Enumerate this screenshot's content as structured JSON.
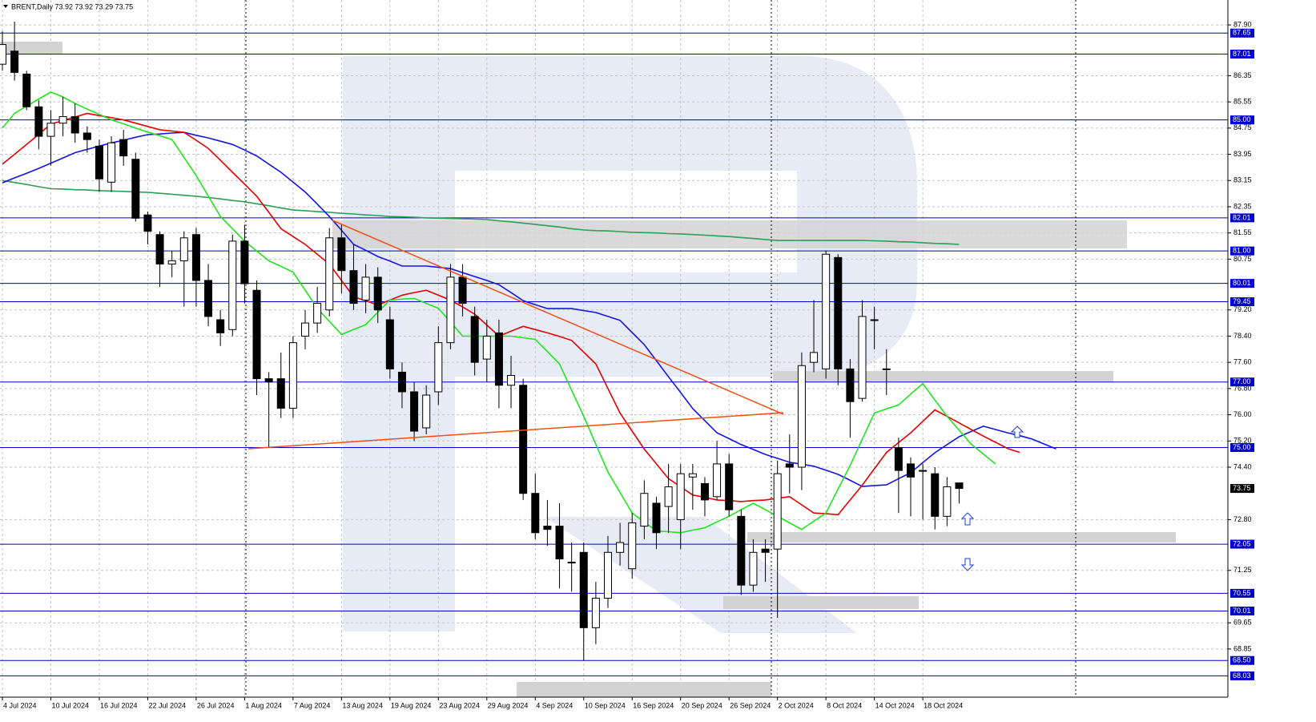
{
  "chart_data": {
    "type": "candlestick",
    "title": "BRENT,Daily 73.92 73.92 73.29 73.75",
    "categories": [
      "4 Jul 2024",
      null,
      null,
      null,
      "10 Jul 2024",
      null,
      null,
      null,
      "16 Jul 2024",
      null,
      null,
      null,
      "22 Jul 2024",
      null,
      null,
      null,
      "26 Jul 2024",
      null,
      null,
      null,
      "1 Aug 2024",
      null,
      null,
      null,
      "7 Aug 2024",
      null,
      null,
      null,
      "13 Aug 2024",
      null,
      null,
      null,
      "19 Aug 2024",
      null,
      null,
      null,
      "23 Aug 2024",
      null,
      null,
      null,
      "29 Aug 2024",
      null,
      null,
      null,
      "4 Sep 2024",
      null,
      null,
      null,
      "10 Sep 2024",
      null,
      null,
      null,
      "16 Sep 2024",
      null,
      null,
      null,
      "20 Sep 2024",
      null,
      null,
      null,
      "26 Sep 2024",
      null,
      null,
      null,
      "2 Oct 2024",
      null,
      null,
      null,
      "8 Oct 2024",
      null,
      null,
      null,
      "14 Oct 2024",
      null,
      null,
      null,
      "18 Oct 2024",
      null,
      null,
      null,
      null,
      null,
      null,
      null,
      null,
      null,
      null,
      null
    ],
    "open": [
      86.7,
      87.1,
      86.4,
      85.4,
      84.5,
      84.9,
      85.1,
      84.6,
      84.2,
      83.1,
      84.4,
      83.8,
      82.1,
      81.5,
      80.6,
      80.7,
      81.5,
      80.1,
      78.9,
      78.6,
      81.3,
      79.8,
      77.1,
      77.1,
      76.2,
      78.4,
      78.8,
      79.2,
      81.4,
      80.4,
      79.5,
      80.2,
      78.9,
      77.3,
      76.7,
      75.6,
      76.7,
      78.2,
      80.2,
      79.0,
      77.7,
      78.5,
      76.9,
      76.9,
      73.6,
      72.6,
      72.6,
      71.5,
      71.8,
      69.5,
      70.4,
      71.8,
      71.3,
      72.6,
      73.3,
      73.2,
      72.8,
      74.1,
      73.9,
      73.5,
      74.5,
      72.9,
      70.8,
      71.9,
      71.9,
      74.5,
      74.4,
      77.6,
      77.4,
      80.8,
      77.4,
      76.5,
      78.9,
      77.4,
      75.0,
      74.5,
      74.3,
      74.2,
      72.9,
      73.92,
      null,
      null,
      null,
      null,
      null,
      null,
      null,
      null
    ],
    "high": [
      87.7,
      88.0,
      86.5,
      85.6,
      85.3,
      85.7,
      85.5,
      84.8,
      84.4,
      84.5,
      84.7,
      84.0,
      82.2,
      81.6,
      81.0,
      81.6,
      81.7,
      80.6,
      79.2,
      81.5,
      81.8,
      80.1,
      77.3,
      77.9,
      78.4,
      79.2,
      79.9,
      81.7,
      81.8,
      81.2,
      80.6,
      80.5,
      79.3,
      77.6,
      77.0,
      76.9,
      78.7,
      80.6,
      80.6,
      79.3,
      78.9,
      78.9,
      77.8,
      77.1,
      74.2,
      73.4,
      73.3,
      72.1,
      72.1,
      70.9,
      72.3,
      72.7,
      73.0,
      74.0,
      73.5,
      74.5,
      74.5,
      74.5,
      74.1,
      75.2,
      74.8,
      73.1,
      72.2,
      72.2,
      74.6,
      75.4,
      77.9,
      79.5,
      81.0,
      80.9,
      77.7,
      79.5,
      79.3,
      78.0,
      75.3,
      74.7,
      74.5,
      74.4,
      74.1,
      73.92,
      null,
      null,
      null,
      null,
      null,
      null,
      null,
      null
    ],
    "low": [
      86.5,
      86.2,
      85.3,
      84.1,
      83.6,
      84.5,
      84.3,
      84.0,
      82.8,
      82.8,
      83.6,
      81.9,
      81.2,
      79.9,
      80.2,
      79.3,
      79.3,
      78.7,
      78.1,
      78.4,
      79.4,
      76.6,
      75.0,
      75.9,
      75.9,
      78.0,
      78.5,
      79.0,
      79.7,
      79.2,
      79.1,
      78.8,
      77.1,
      76.2,
      75.2,
      75.4,
      76.3,
      78.0,
      79.0,
      77.2,
      77.0,
      76.2,
      76.2,
      73.4,
      72.2,
      72.0,
      70.7,
      70.6,
      68.5,
      69.0,
      70.1,
      71.4,
      71.0,
      72.2,
      71.9,
      72.4,
      71.9,
      73.1,
      72.9,
      73.4,
      72.9,
      70.5,
      70.6,
      70.9,
      69.8,
      73.6,
      73.7,
      77.3,
      77.1,
      76.9,
      75.3,
      76.4,
      78.0,
      76.6,
      73.0,
      72.9,
      72.8,
      72.5,
      72.6,
      73.29,
      null,
      null,
      null,
      null,
      null,
      null,
      null,
      null
    ],
    "close": [
      87.3,
      86.45,
      85.4,
      84.5,
      84.9,
      85.1,
      84.6,
      84.4,
      83.2,
      84.3,
      83.9,
      82.0,
      81.6,
      80.6,
      80.7,
      81.4,
      80.1,
      79.0,
      78.5,
      81.3,
      80.0,
      77.1,
      77.0,
      76.2,
      78.2,
      78.8,
      79.4,
      81.4,
      80.4,
      79.4,
      80.2,
      79.2,
      77.4,
      76.7,
      75.5,
      76.6,
      78.2,
      80.2,
      79.4,
      77.6,
      78.4,
      76.9,
      77.2,
      73.6,
      72.4,
      72.5,
      71.6,
      71.5,
      69.5,
      70.4,
      71.8,
      72.1,
      72.7,
      73.6,
      72.4,
      73.8,
      74.2,
      74.2,
      73.4,
      74.5,
      73.1,
      70.8,
      71.8,
      71.8,
      74.2,
      74.4,
      77.5,
      77.9,
      80.9,
      77.4,
      76.4,
      79.0,
      78.9,
      77.4,
      74.3,
      74.1,
      74.3,
      72.9,
      73.8,
      73.75,
      null,
      null,
      null,
      null,
      null,
      null,
      null,
      null
    ],
    "series": [
      {
        "color": "#2e9e58",
        "values": [
          83.15,
          83.09,
          83.03,
          82.96,
          82.9,
          82.89,
          82.87,
          82.86,
          82.84,
          82.83,
          82.82,
          82.8,
          82.79,
          82.76,
          82.73,
          82.7,
          82.67,
          82.63,
          82.59,
          82.54,
          82.5,
          82.44,
          82.38,
          82.31,
          82.25,
          82.23,
          82.2,
          82.18,
          82.15,
          82.13,
          82.1,
          82.08,
          82.05,
          82.04,
          82.03,
          82.01,
          82.0,
          81.99,
          81.98,
          81.97,
          81.96,
          81.92,
          81.89,
          81.85,
          81.81,
          81.77,
          81.73,
          81.68,
          81.64,
          81.62,
          81.61,
          81.59,
          81.57,
          81.56,
          81.55,
          81.53,
          81.52,
          81.5,
          81.48,
          81.46,
          81.44,
          81.41,
          81.38,
          81.35,
          81.32,
          81.32,
          81.32,
          81.32,
          81.32,
          81.32,
          81.32,
          81.32,
          81.31,
          81.3,
          81.28,
          81.27,
          81.25,
          81.23,
          81.22,
          81.2,
          null,
          null,
          null,
          null,
          null,
          null,
          null,
          null
        ]
      },
      {
        "color": "#1414e6",
        "values": [
          83.08,
          83.23,
          83.37,
          83.52,
          83.68,
          83.84,
          84.0,
          84.1,
          84.2,
          84.3,
          84.38,
          84.47,
          84.55,
          84.57,
          84.6,
          84.62,
          84.53,
          84.45,
          84.35,
          84.25,
          84.08,
          83.9,
          83.65,
          83.4,
          83.1,
          82.8,
          82.43,
          82.05,
          81.63,
          81.2,
          81.02,
          80.83,
          80.69,
          80.54,
          80.54,
          80.54,
          80.5,
          80.46,
          80.34,
          80.22,
          80.1,
          79.97,
          79.73,
          79.48,
          79.36,
          79.24,
          79.24,
          79.24,
          79.18,
          79.12,
          79.0,
          78.88,
          78.51,
          78.14,
          77.65,
          77.16,
          76.68,
          76.19,
          75.82,
          75.45,
          75.27,
          75.09,
          74.94,
          74.79,
          74.67,
          74.55,
          74.49,
          74.43,
          74.31,
          74.18,
          74.0,
          73.81,
          73.84,
          73.86,
          74.05,
          74.23,
          74.54,
          74.84,
          75.09,
          75.33,
          75.49,
          75.65,
          75.55,
          75.45,
          75.36,
          75.26,
          75.11,
          74.96
        ]
      },
      {
        "color": "#e60000",
        "values": [
          83.65,
          83.95,
          84.25,
          84.56,
          84.87,
          84.98,
          85.09,
          85.2,
          85.13,
          85.07,
          85.0,
          84.9,
          84.8,
          84.7,
          84.66,
          84.62,
          84.38,
          84.13,
          83.77,
          83.4,
          83.04,
          82.67,
          82.18,
          81.68,
          81.44,
          81.2,
          80.9,
          80.6,
          80.1,
          79.6,
          79.48,
          79.35,
          79.5,
          79.65,
          79.73,
          79.8,
          79.65,
          79.5,
          79.29,
          79.07,
          78.74,
          78.4,
          78.55,
          78.7,
          78.6,
          78.5,
          78.39,
          78.27,
          77.91,
          77.55,
          76.8,
          76.05,
          75.5,
          74.95,
          74.5,
          74.05,
          73.8,
          73.55,
          73.48,
          73.4,
          73.38,
          73.35,
          73.38,
          73.4,
          73.45,
          73.5,
          73.25,
          73.0,
          72.98,
          72.95,
          73.4,
          73.85,
          74.35,
          74.85,
          75.15,
          75.45,
          75.8,
          76.15,
          75.95,
          75.75,
          75.55,
          75.35,
          75.16,
          74.97,
          74.85,
          null,
          null,
          null
        ]
      },
      {
        "color": "#1ee61e",
        "values": [
          84.75,
          85.2,
          85.42,
          85.64,
          85.85,
          85.7,
          85.5,
          85.33,
          85.17,
          85.0,
          84.88,
          84.75,
          84.63,
          84.52,
          84.4,
          83.85,
          83.3,
          82.68,
          82.05,
          81.68,
          81.3,
          81.0,
          80.7,
          80.53,
          80.35,
          79.8,
          79.25,
          78.85,
          78.45,
          78.6,
          78.75,
          79.13,
          79.5,
          79.53,
          79.55,
          79.4,
          79.25,
          78.83,
          78.4,
          78.4,
          78.4,
          78.4,
          78.4,
          78.35,
          78.3,
          77.93,
          77.55,
          76.75,
          75.95,
          75.1,
          74.25,
          73.63,
          73.0,
          72.73,
          72.45,
          72.43,
          72.4,
          72.48,
          72.55,
          72.73,
          72.9,
          73.1,
          73.3,
          73.1,
          72.9,
          72.7,
          72.5,
          72.75,
          73.0,
          73.73,
          74.45,
          75.25,
          76.05,
          76.18,
          76.3,
          76.63,
          76.95,
          76.45,
          75.95,
          75.53,
          75.1,
          74.8,
          74.5,
          null,
          null,
          null,
          null,
          null
        ]
      }
    ],
    "levels": [
      87.65,
      87.01,
      {
        "value": 85.0,
        "label": "85.00"
      },
      82.01,
      {
        "value": 81.0,
        "label": "81.00"
      },
      80.01,
      79.45,
      {
        "value": 77.0,
        "label": "77.00"
      },
      {
        "value": 75.0,
        "label": "75.00"
      },
      72.05,
      70.55,
      70.01,
      {
        "value": 68.5,
        "label": "68.50"
      },
      68.03
    ],
    "ylim": [
      67.38,
      88.66
    ],
    "yticks": [
      {
        "value": 87.9,
        "label": "87.90"
      },
      86.35,
      85.55,
      84.75,
      83.95,
      83.15,
      82.35,
      81.55,
      80.75,
      {
        "value": 79.2,
        "label": "79.20"
      },
      {
        "value": 78.4,
        "label": "78.40"
      },
      {
        "value": 77.6,
        "label": "77.60"
      },
      {
        "value": 76.8,
        "label": "76.80"
      },
      {
        "value": 76.0,
        "label": "76.00"
      },
      {
        "value": 75.2,
        "label": "75.20"
      },
      {
        "value": 74.4,
        "label": "74.40"
      },
      {
        "value": 72.8,
        "label": "72.80"
      },
      71.25,
      69.65,
      68.85
    ],
    "grid": true,
    "up_color": "#ffffff",
    "down_color": "#000000",
    "level_color": "#0000cc"
  }
}
